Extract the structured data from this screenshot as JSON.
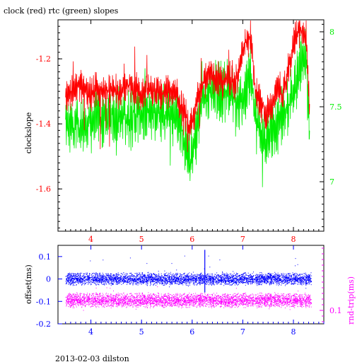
{
  "header": {
    "title": "clock (red) rtc (green) slopes",
    "footer": "2013-02-03 dilston"
  },
  "colors": {
    "clock": "#ff0000",
    "rtc": "#00ee00",
    "offset": "#0000ff",
    "rnd_trip": "#ff00ff",
    "frame": "#000000"
  },
  "chart_data": [
    {
      "type": "line",
      "xlim": [
        3.35,
        8.6
      ],
      "x_ticks": [
        4,
        5,
        6,
        7,
        8
      ],
      "x_tick_labels": [
        "4",
        "5",
        "6",
        "7",
        "8"
      ],
      "y_left": {
        "label": "clockslope",
        "lim": [
          -1.73,
          -1.08
        ],
        "ticks": [
          -1.6,
          -1.4,
          -1.2
        ],
        "tick_labels": [
          "-1.6",
          "-1.4",
          "-1.2"
        ],
        "color": "#ff0000"
      },
      "y_right": {
        "lim": [
          6.67,
          8.08
        ],
        "ticks": [
          7,
          7.5,
          8
        ],
        "tick_labels": [
          "7",
          "7.5",
          "8"
        ],
        "color": "#00ee00"
      },
      "series": [
        {
          "name": "clock (red)",
          "axis": "left",
          "x": [
            3.5,
            3.6,
            3.75,
            3.9,
            4.0,
            4.15,
            4.3,
            4.45,
            4.55,
            4.7,
            4.85,
            5.0,
            5.1,
            5.25,
            5.4,
            5.55,
            5.7,
            5.8,
            5.9,
            5.95,
            6.0,
            6.1,
            6.2,
            6.35,
            6.5,
            6.6,
            6.75,
            6.85,
            6.95,
            7.05,
            7.15,
            7.25,
            7.35,
            7.45,
            7.55,
            7.7,
            7.8,
            7.95,
            8.05,
            8.15,
            8.25,
            8.32
          ],
          "y": [
            -1.32,
            -1.3,
            -1.28,
            -1.3,
            -1.31,
            -1.29,
            -1.3,
            -1.29,
            -1.31,
            -1.28,
            -1.29,
            -1.31,
            -1.3,
            -1.29,
            -1.31,
            -1.3,
            -1.32,
            -1.35,
            -1.39,
            -1.42,
            -1.4,
            -1.33,
            -1.27,
            -1.25,
            -1.26,
            -1.27,
            -1.26,
            -1.28,
            -1.22,
            -1.15,
            -1.13,
            -1.3,
            -1.34,
            -1.38,
            -1.35,
            -1.29,
            -1.31,
            -1.2,
            -1.12,
            -1.11,
            -1.13,
            -1.36
          ]
        },
        {
          "name": "rtc (green)",
          "axis": "right",
          "x": [
            3.5,
            3.6,
            3.75,
            3.9,
            4.0,
            4.15,
            4.3,
            4.45,
            4.55,
            4.7,
            4.85,
            5.0,
            5.1,
            5.25,
            5.4,
            5.55,
            5.7,
            5.8,
            5.9,
            5.95,
            6.0,
            6.1,
            6.2,
            6.35,
            6.5,
            6.6,
            6.75,
            6.85,
            6.95,
            7.05,
            7.15,
            7.25,
            7.35,
            7.45,
            7.55,
            7.7,
            7.8,
            7.95,
            8.05,
            8.15,
            8.25,
            8.32
          ],
          "y": [
            7.38,
            7.36,
            7.38,
            7.37,
            7.4,
            7.42,
            7.43,
            7.45,
            7.44,
            7.42,
            7.44,
            7.46,
            7.45,
            7.47,
            7.48,
            7.46,
            7.44,
            7.35,
            7.15,
            7.12,
            7.2,
            7.36,
            7.55,
            7.58,
            7.62,
            7.6,
            7.62,
            7.55,
            7.5,
            7.6,
            7.7,
            7.45,
            7.3,
            7.28,
            7.35,
            7.4,
            7.45,
            7.55,
            7.65,
            7.8,
            7.83,
            7.3
          ]
        }
      ]
    },
    {
      "type": "scatter",
      "xlim": [
        3.35,
        8.6
      ],
      "x_ticks": [
        4,
        5,
        6,
        7,
        8
      ],
      "x_tick_labels": [
        "4",
        "5",
        "6",
        "7",
        "8"
      ],
      "y_left": {
        "label": "offset(ms)",
        "lim": [
          -0.2,
          0.15
        ],
        "ticks": [
          -0.2,
          -0.1,
          0,
          0.1
        ],
        "tick_labels": [
          "-0.2",
          "-0.1",
          "0",
          "0.1"
        ],
        "color": "#0000ff"
      },
      "y_right": {
        "label": "rnd-trip(ms)",
        "ticks": [
          0.1
        ],
        "tick_labels": [
          "0.1"
        ],
        "color": "#ff00ff"
      },
      "series": [
        {
          "name": "offset",
          "axis": "left",
          "x_range": [
            3.5,
            8.35
          ],
          "center": 0.0,
          "spread": 0.03,
          "color": "#0000ff"
        },
        {
          "name": "rnd-trip",
          "axis": "left",
          "x_range": [
            3.5,
            8.35
          ],
          "center": -0.095,
          "spread": 0.035,
          "color": "#ff00ff"
        }
      ]
    }
  ]
}
